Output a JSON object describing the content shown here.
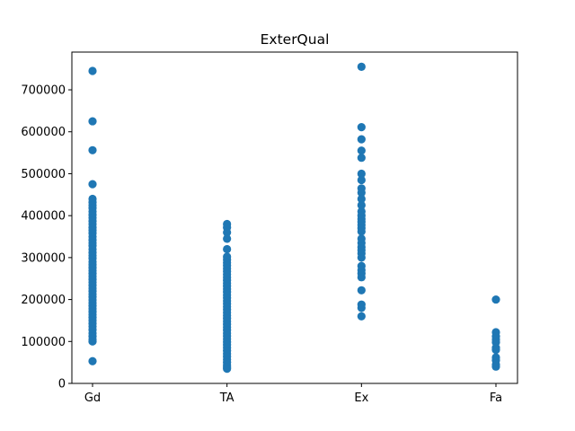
{
  "chart_data": {
    "type": "scatter",
    "title": "ExterQual",
    "xlabel": "",
    "ylabel": "",
    "categories": [
      "Gd",
      "TA",
      "Ex",
      "Fa"
    ],
    "ylim": [
      0,
      790000
    ],
    "yticks": [
      0,
      100000,
      200000,
      300000,
      400000,
      500000,
      600000,
      700000
    ],
    "ytick_labels": [
      "0",
      "100000",
      "200000",
      "300000",
      "400000",
      "500000",
      "600000",
      "700000"
    ],
    "grid": false,
    "marker_color": "#1f77b4",
    "series": [
      {
        "category": "Gd",
        "values": [
          745000,
          625000,
          556000,
          475000,
          440000,
          432000,
          425000,
          418000,
          410000,
          402000,
          395000,
          387000,
          380000,
          372000,
          365000,
          358000,
          350000,
          342000,
          335000,
          328000,
          320000,
          312000,
          305000,
          298000,
          290000,
          283000,
          276000,
          269000,
          262000,
          255000,
          248000,
          241000,
          234000,
          227000,
          220000,
          213000,
          206000,
          199000,
          192000,
          185000,
          178000,
          171000,
          164000,
          157000,
          150000,
          143000,
          136000,
          128000,
          120000,
          112000,
          105000,
          100000,
          53000
        ]
      },
      {
        "category": "TA",
        "values": [
          380000,
          372000,
          360000,
          345000,
          320000,
          302000,
          295000,
          288000,
          281000,
          274000,
          267000,
          260000,
          253000,
          246000,
          239000,
          232000,
          225000,
          218000,
          211000,
          204000,
          197000,
          190000,
          183000,
          176000,
          169000,
          162000,
          155000,
          148000,
          141000,
          134000,
          127000,
          120000,
          113000,
          106000,
          99000,
          92000,
          85000,
          78000,
          71000,
          64000,
          57000,
          50000,
          44000,
          39000,
          35000
        ]
      },
      {
        "category": "Ex",
        "values": [
          755000,
          611000,
          582000,
          555000,
          538000,
          500000,
          485000,
          465000,
          455000,
          440000,
          425000,
          410000,
          400000,
          392000,
          385000,
          378000,
          370000,
          362000,
          345000,
          335000,
          325000,
          318000,
          310000,
          300000,
          280000,
          270000,
          262000,
          253000,
          222000,
          188000,
          180000,
          160000
        ]
      },
      {
        "category": "Fa",
        "values": [
          200000,
          122000,
          112000,
          105000,
          98000,
          85000,
          80000,
          62000,
          55000,
          45000,
          40000
        ]
      }
    ]
  }
}
